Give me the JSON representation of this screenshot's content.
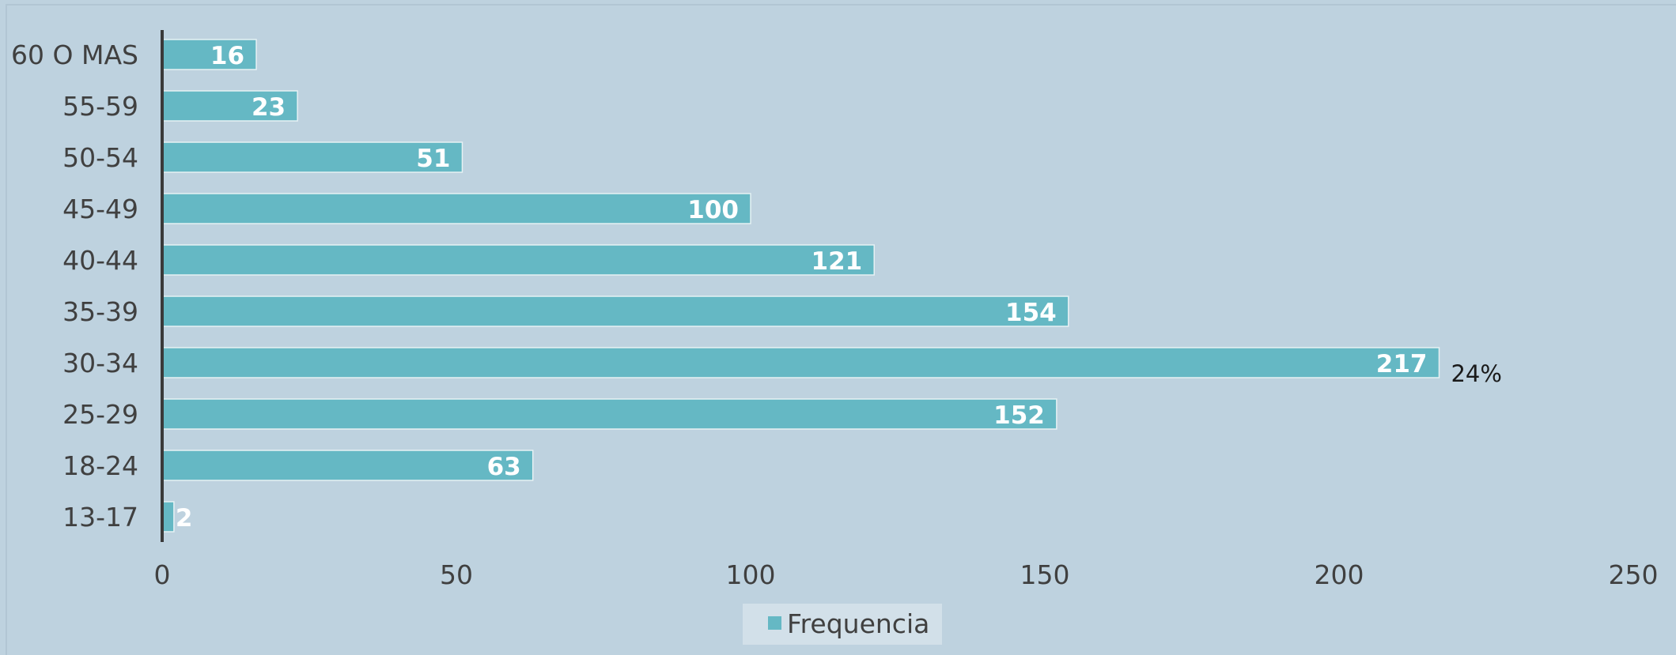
{
  "chart_data": {
    "type": "bar",
    "orientation": "horizontal",
    "title": "",
    "xlabel": "",
    "ylabel": "",
    "categories": [
      "13-17",
      "18-24",
      "25-29",
      "30-34",
      "35-39",
      "40-44",
      "45-49",
      "50-54",
      "55-59",
      "60 O MAS"
    ],
    "series": [
      {
        "name": "Frequencia",
        "values": [
          2,
          63,
          152,
          217,
          154,
          121,
          100,
          51,
          23,
          16
        ]
      }
    ],
    "xlim": [
      0,
      250
    ],
    "xticks": [
      "0",
      "50",
      "100",
      "150",
      "200",
      "250"
    ],
    "grid": false,
    "legend": {
      "position": "bottom",
      "entries": [
        "Frequencia"
      ]
    },
    "annotations": [
      {
        "category": "30-34",
        "text": "24%"
      }
    ],
    "data_labels": true,
    "colors": {
      "bar": "#65b8c4",
      "background": "#bed2df"
    }
  }
}
